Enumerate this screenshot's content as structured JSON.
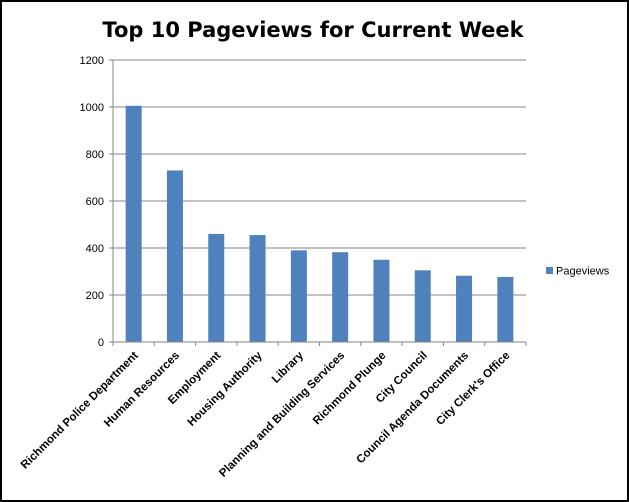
{
  "chart_data": {
    "type": "bar",
    "title": "Top 10 Pageviews for Current Week",
    "xlabel": "",
    "ylabel": "",
    "categories": [
      "Richmond Police Department",
      "Human Resources",
      "Employment",
      "Housing Authority",
      "Library",
      "Planning and Building Services",
      "Richmond Plunge",
      "City Council",
      "Council Agenda Documents",
      "City Clerk's Office"
    ],
    "series": [
      {
        "name": "Pageviews",
        "values": [
          1005,
          730,
          460,
          455,
          390,
          382,
          350,
          305,
          282,
          277
        ],
        "color": "#4f81bd"
      }
    ],
    "ylim": [
      0,
      1200
    ],
    "yticks": [
      "0",
      "200",
      "400",
      "600",
      "800",
      "1000",
      "1200"
    ],
    "grid": true,
    "legend_position": "right"
  }
}
